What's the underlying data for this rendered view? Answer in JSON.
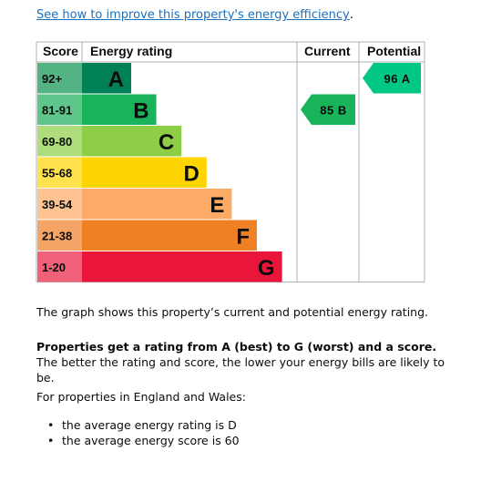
{
  "link": {
    "improve_text": "See how to improve this property's energy efficiency"
  },
  "link_trailing": ".",
  "table": {
    "headers": {
      "score": "Score",
      "rating": "Energy rating",
      "current": "Current",
      "potential": "Potential"
    },
    "bands": [
      {
        "range": "92+",
        "letter": "A",
        "color": "#008054",
        "label_bg": "#54b383"
      },
      {
        "range": "81-91",
        "letter": "B",
        "color": "#19b459",
        "label_bg": "#5ec68a"
      },
      {
        "range": "69-80",
        "letter": "C",
        "color": "#8dce46",
        "label_bg": "#afdd7e"
      },
      {
        "range": "55-68",
        "letter": "D",
        "color": "#ffd500",
        "label_bg": "#ffe24d"
      },
      {
        "range": "39-54",
        "letter": "E",
        "color": "#fcaa65",
        "label_bg": "#fdc393"
      },
      {
        "range": "21-38",
        "letter": "F",
        "color": "#ef8023",
        "label_bg": "#f4a565"
      },
      {
        "range": "1-20",
        "letter": "G",
        "color": "#e9153b",
        "label_bg": "#f06079"
      }
    ],
    "current": {
      "score": 85,
      "letter": "B",
      "label": "85  B",
      "color": "#19b459"
    },
    "potential": {
      "score": 96,
      "letter": "A",
      "label": "96  A",
      "color": "#00c781"
    }
  },
  "text": {
    "p1": "The graph shows this property’s current and potential energy rating.",
    "p2_bold": "Properties get a rating from A (best) to G (worst) and a score.",
    "p2_rest": " The better the rating and score, the lower your energy bills are likely to be.",
    "p3": "For properties in England and Wales:",
    "bullets": [
      "the average energy rating is D",
      "the average energy score is 60"
    ]
  }
}
